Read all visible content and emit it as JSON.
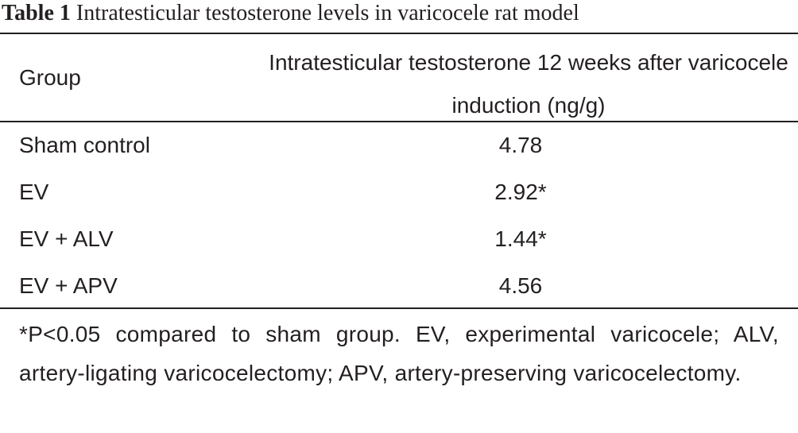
{
  "caption": {
    "label": "Table 1",
    "title": "Intratesticular testosterone levels in varicocele rat model"
  },
  "table": {
    "headers": {
      "group": "Group",
      "value": "Intratesticular testosterone 12 weeks after varicocele induction (ng/g)"
    },
    "rows": [
      {
        "group": "Sham control",
        "value": "4.78"
      },
      {
        "group": "EV",
        "value": "2.92*"
      },
      {
        "group": "EV + ALV",
        "value": "1.44*"
      },
      {
        "group": "EV + APV",
        "value": "4.56"
      }
    ]
  },
  "footnote": "*P<0.05 compared to sham group. EV, experimental varicocele; ALV, artery-ligating varicocelectomy; APV, artery-preserving varicocelectomy."
}
